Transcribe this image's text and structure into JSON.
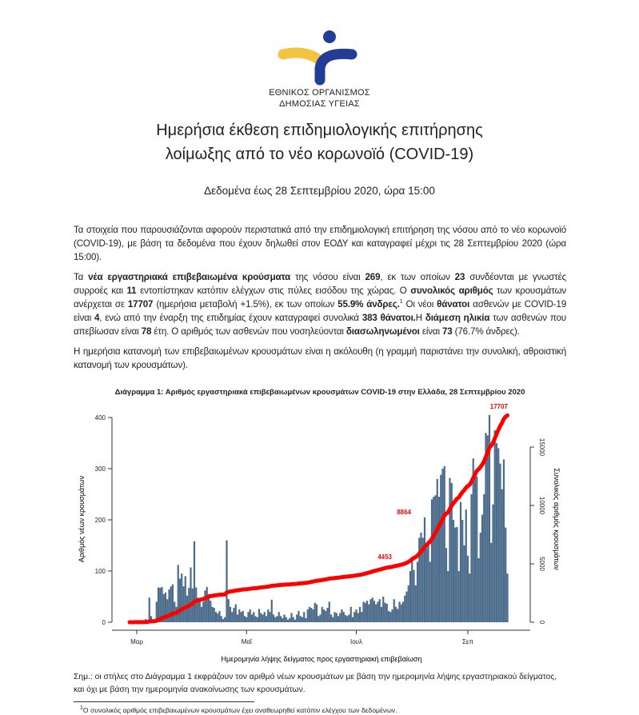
{
  "header": {
    "org_line1": "ΕΘΝΙΚΟΣ ΟΡΓΑΝΙΣΜΟΣ",
    "org_line2": "ΔΗΜΟΣΙΑΣ ΥΓΕΙΑΣ",
    "logo_colors": {
      "yellow": "#f5c342",
      "blue": "#233c96"
    },
    "title_line1": "Ημερήσια έκθεση επιδημιολογικής επιτήρησης",
    "title_line2": "λοίμωξης από το νέο κορωνοϊό (COVID-19)",
    "date_line": "Δεδομένα έως 28 Σεπτεμβρίου 2020, ώρα 15:00"
  },
  "body": {
    "p1": "Τα στοιχεία που παρουσιάζονται αφορούν περιστατικά από την επιδημιολογική επιτήρηση της νόσου από το νέο κορωνοϊό (COVID-19), με βάση τα δεδομένα που έχουν δηλωθεί στον ΕΟΔΥ και καταγραφεί μέχρι τις 28 Σεπτεμβρίου 2020 (ώρα 15:00).",
    "p2": {
      "s1": "Τα ",
      "b1": "νέα εργαστηριακά επιβεβαιωμένα κρούσματα",
      "s2": " της νόσου είναι ",
      "b2": "269",
      "s3": ", εκ των οποίων ",
      "b3": "23",
      "s4": " συνδέονται με γνωστές συρροές και ",
      "b4": "11",
      "s5": " εντοπίστηκαν κατόπιν ελέγχων στις πύλες εισόδου της χώρας. Ο ",
      "b5": "συνολικός αριθμός",
      "s6": " των κρουσμάτων ανέρχεται σε ",
      "b6": "17707",
      "s7": " (ημερήσια μεταβολή +1.5%), εκ των οποίων ",
      "b7": "55.9% άνδρες.",
      "sup": "1",
      "s8": " Οι νέοι ",
      "b8": "θάνατοι",
      "s9": " ασθενών με COVID-19 είναι ",
      "b9": "4",
      "s10": ", ενώ από την έναρξη της επιδημίας έχουν καταγραφεί συνολικά ",
      "b10": "383 θάνατοι.",
      "s11": "Η ",
      "b11": "διάμεση ηλικία",
      "s12": " των ασθενών που απεβίωσαν είναι ",
      "b12": "78",
      "s13": " έτη. Ο αριθμός των ασθενών που νοσηλεύονται ",
      "b13": "διασωληνωμένοι",
      "s14": " είναι ",
      "b14": "73",
      "s15": " (76.7% άνδρες)."
    },
    "p3": "Η ημερήσια κατανομή των επιβεβαιωμένων κρουσμάτων είναι η ακόλουθη (η γραμμή παριστάνει την συνολική, αθροιστική κατανομή των κρουσμάτων)."
  },
  "chart_data": {
    "type": "bar+line",
    "title": "Διάγραμμα 1: Αριθμός εργαστηριακά επιβεβαιωμένων κρουσμάτων COVID-19 στην Ελλάδα, 28 Σεπτεμβρίου 2020",
    "xlabel": "Ημερομηνία λήψης δείγματος προς εργαστηριακή επιβεβαίωση",
    "ylabel": "Αριθμός νέων κρουσμάτων",
    "y2label": "Συνολικός αριθμός κρουσμάτων",
    "ylim": [
      0,
      420
    ],
    "y2lim": [
      0,
      17707
    ],
    "yticks": [
      0,
      100,
      200,
      300,
      400
    ],
    "y2ticks": [
      0,
      5000,
      10000,
      15000
    ],
    "xticks": [
      {
        "label": "Μαρ",
        "day": 4
      },
      {
        "label": "Μαΐ",
        "day": 65
      },
      {
        "label": "Ιουλ",
        "day": 126
      },
      {
        "label": "Σεπ",
        "day": 188
      }
    ],
    "start_date": "2020-02-26",
    "bar_color": "#4a6b8a",
    "line_color": "#ff0000",
    "daily_values": [
      1,
      1,
      1,
      3,
      0,
      2,
      0,
      2,
      1,
      6,
      0,
      48,
      12,
      5,
      4,
      40,
      68,
      67,
      69,
      55,
      58,
      45,
      64,
      70,
      74,
      40,
      30,
      112,
      85,
      95,
      70,
      90,
      52,
      67,
      107,
      66,
      158,
      68,
      48,
      45,
      30,
      40,
      62,
      69,
      55,
      42,
      30,
      28,
      20,
      17,
      22,
      12,
      6,
      10,
      160,
      45,
      30,
      20,
      28,
      35,
      15,
      25,
      20,
      22,
      12,
      10,
      20,
      25,
      15,
      20,
      12,
      10,
      26,
      18,
      15,
      20,
      12,
      25,
      20,
      44,
      15,
      10,
      12,
      20,
      12,
      8,
      15,
      10,
      5,
      8,
      18,
      10,
      5,
      15,
      22,
      12,
      10,
      20,
      8,
      25,
      30,
      28,
      25,
      38,
      35,
      12,
      15,
      30,
      25,
      22,
      28,
      40,
      15,
      10,
      20,
      18,
      12,
      18,
      25,
      20,
      14,
      12,
      15,
      30,
      10,
      20,
      25,
      18,
      30,
      20,
      40,
      38,
      42,
      35,
      45,
      48,
      42,
      35,
      40,
      45,
      30,
      50,
      38,
      36,
      22,
      20,
      25,
      45,
      30,
      26,
      40,
      35,
      40,
      52,
      60,
      72,
      100,
      126,
      102,
      72,
      118,
      165,
      175,
      165,
      205,
      145,
      160,
      118,
      240,
      245,
      248,
      280,
      245,
      288,
      300,
      305,
      145,
      100,
      282,
      272,
      200,
      185,
      186,
      100,
      235,
      200,
      150,
      220,
      130,
      95,
      250,
      320,
      290,
      285,
      125,
      175,
      210,
      250,
      370,
      365,
      405,
      155,
      230,
      375,
      350,
      340,
      310,
      260,
      318,
      185,
      95
    ],
    "cumulative_total": 17707,
    "annotations": [
      "4453",
      "8864",
      "17707"
    ]
  },
  "notes": {
    "note": "Σημ.: οι στήλες στο Διάγραμμα 1 εκφράζουν τον αριθμό νέων κρουσμάτων με βάση την ημερομηνία λήψης εργαστηριακού δείγματος, και όχι με βάση την ημερομηνία ανακοίνωσης των κρουσμάτων.",
    "footnote_mark": "1",
    "footnote": "Ο συνολικός αριθμός επιβεβαιωμένων κρουσμάτων έχει αναθεωρηθεί κατόπιν ελέγχου των δεδομένων."
  }
}
